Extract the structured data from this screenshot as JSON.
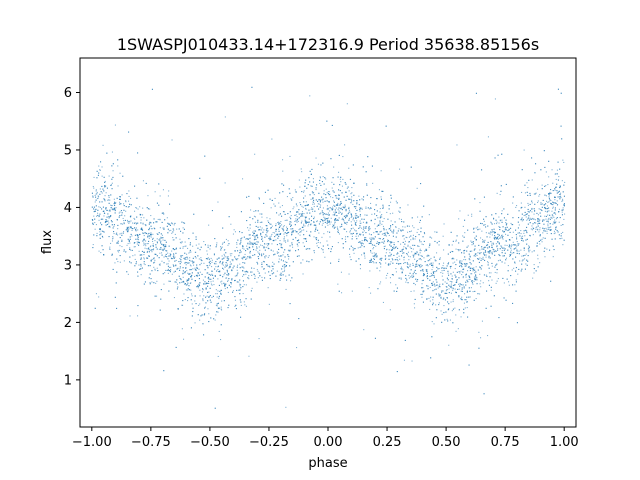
{
  "chart_data": {
    "type": "scatter",
    "title": "1SWASPJ010433.14+172316.9 Period 35638.85156s",
    "xlabel": "phase",
    "ylabel": "flux",
    "xlim": [
      -1.05,
      1.05
    ],
    "ylim": [
      0.18,
      6.6
    ],
    "xticks": [
      -1.0,
      -0.75,
      -0.5,
      -0.25,
      0.0,
      0.25,
      0.5,
      0.75,
      1.0
    ],
    "xtick_labels": [
      "−1.00",
      "−0.75",
      "−0.50",
      "−0.25",
      "0.00",
      "0.25",
      "0.50",
      "0.75",
      "1.00"
    ],
    "yticks": [
      1,
      2,
      3,
      4,
      5,
      6
    ],
    "ytick_labels": [
      "1",
      "2",
      "3",
      "4",
      "5",
      "6"
    ],
    "grid": false,
    "color": "#1f77b4",
    "series": [
      {
        "trend_phase": [
          -1.0,
          -0.75,
          -0.5,
          -0.25,
          0.0,
          0.25,
          0.5,
          0.75,
          1.0
        ],
        "trend_flux": [
          4.0,
          3.4,
          2.75,
          3.4,
          4.0,
          3.4,
          2.75,
          3.4,
          4.0
        ],
        "scatter_sigma": 0.35
      }
    ]
  }
}
